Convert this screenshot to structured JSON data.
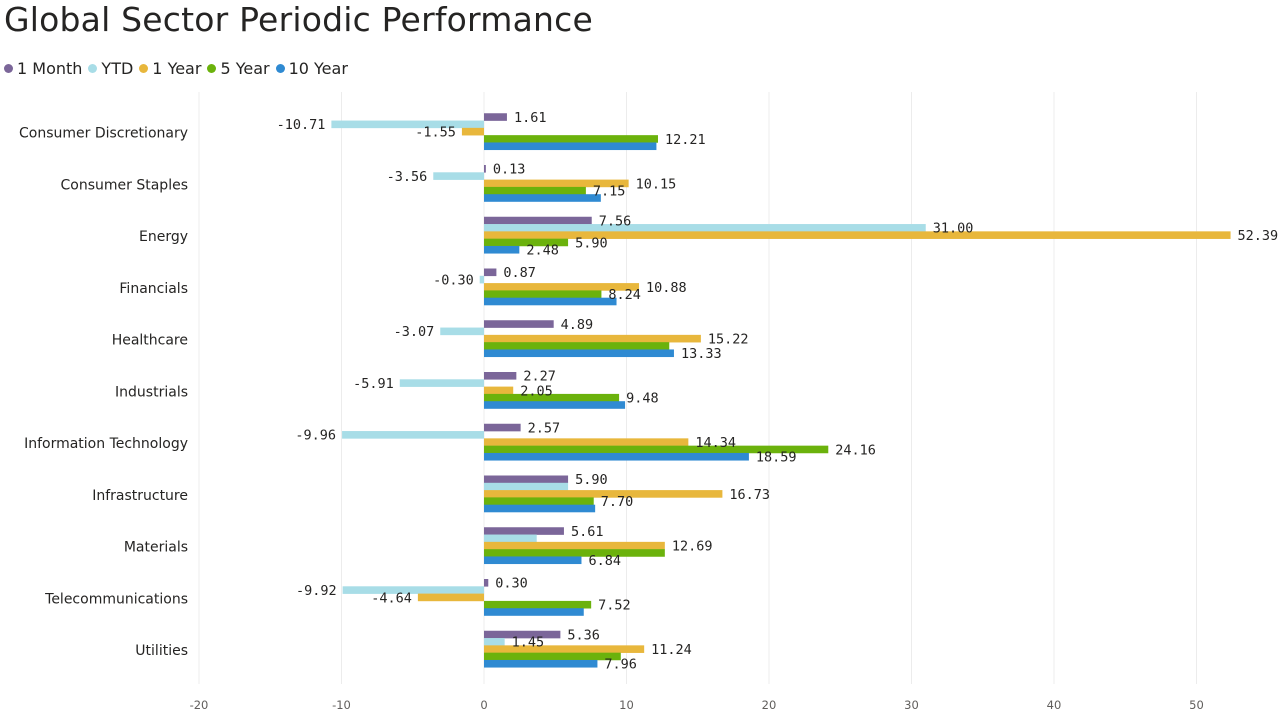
{
  "title": "Global Sector Periodic Performance",
  "chart_data": {
    "type": "bar",
    "orientation": "horizontal",
    "title": "Global Sector Periodic Performance",
    "categories": [
      "Consumer Discretionary",
      "Consumer Staples",
      "Energy",
      "Financials",
      "Healthcare",
      "Industrials",
      "Information Technology",
      "Infrastructure",
      "Materials",
      "Telecommunications",
      "Utilities"
    ],
    "series": [
      {
        "name": "1 Month",
        "color": "#7b6699",
        "values": [
          1.61,
          0.13,
          7.56,
          0.87,
          4.89,
          2.27,
          2.57,
          5.9,
          5.61,
          0.3,
          5.36
        ],
        "labels": [
          "1.61",
          "0.13",
          "7.56",
          "0.87",
          "4.89",
          "2.27",
          "2.57",
          "5.90",
          "5.61",
          "0.30",
          "5.36"
        ]
      },
      {
        "name": "YTD",
        "color": "#a8dde7",
        "values": [
          -10.71,
          -3.56,
          31.0,
          -0.3,
          -3.07,
          -5.91,
          -9.96,
          5.9,
          3.7,
          -9.92,
          1.45
        ],
        "labels": [
          "-10.71",
          "-3.56",
          "31.00",
          "-0.30",
          "-3.07",
          "-5.91",
          "-9.96",
          "",
          "",
          "-9.92",
          "1.45"
        ]
      },
      {
        "name": "1 Year",
        "color": "#e8b73c",
        "values": [
          -1.55,
          10.15,
          52.39,
          10.88,
          15.22,
          2.05,
          14.34,
          16.73,
          12.69,
          -4.64,
          11.24
        ],
        "labels": [
          "-1.55",
          "10.15",
          "52.39",
          "10.88",
          "15.22",
          "2.05",
          "14.34",
          "16.73",
          "12.69",
          "-4.64",
          "11.24"
        ]
      },
      {
        "name": "5 Year",
        "color": "#6bb20c",
        "values": [
          12.21,
          7.15,
          5.9,
          8.24,
          13.0,
          9.48,
          24.16,
          7.7,
          12.69,
          7.52,
          9.6
        ],
        "labels": [
          "12.21",
          "7.15",
          "5.90",
          "8.24",
          "",
          "9.48",
          "24.16",
          "7.70",
          "",
          "7.52",
          ""
        ]
      },
      {
        "name": "10 Year",
        "color": "#2f8ad2",
        "values": [
          12.1,
          8.2,
          2.48,
          9.3,
          13.33,
          9.9,
          18.59,
          7.8,
          6.84,
          7.0,
          7.96
        ],
        "labels": [
          "",
          "",
          "2.48",
          "",
          "13.33",
          "",
          "18.59",
          "",
          "6.84",
          "",
          "7.96"
        ]
      }
    ],
    "xlim": [
      -20,
      54
    ],
    "xticks": [
      -20,
      -10,
      0,
      10,
      20,
      30,
      40,
      50
    ],
    "xtick_labels": [
      "-20",
      "-10",
      "0",
      "10",
      "20",
      "30",
      "40",
      "50"
    ],
    "grid": true,
    "legend_position": "top-left"
  }
}
